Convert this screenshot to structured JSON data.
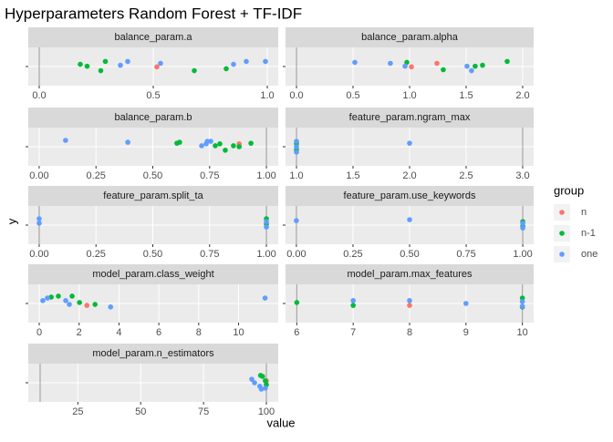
{
  "title": "Hyperparameters Random Forest + TF-IDF",
  "xlabel": "value",
  "ylabel": "y",
  "legend_title": "group",
  "chart_data": [
    {
      "type": "scatter",
      "title": "balance_param.a",
      "xlim": [
        -0.048,
        1.048
      ],
      "ylim": [
        0.4,
        1.6
      ],
      "xticks": [
        {
          "value": 0,
          "label": "0.0"
        },
        {
          "value": 0.5,
          "label": "0.5"
        },
        {
          "value": 1,
          "label": "1.0"
        }
      ],
      "vlines": [
        0
      ],
      "series": [
        {
          "name": "n",
          "color": "#F8766D",
          "x": [
            0.516
          ],
          "values": [
            0.99
          ]
        },
        {
          "name": "n-1",
          "color": "#00BA38",
          "x": [
            0.18,
            0.21,
            0.27,
            0.29,
            0.68,
            0.82
          ],
          "values": [
            1.07,
            1.01,
            0.87,
            1.16,
            0.87,
            0.93
          ]
        },
        {
          "name": "one",
          "color": "#619CFF",
          "x": [
            0.356,
            0.388,
            0.532,
            0.852,
            0.908,
            0.992
          ],
          "values": [
            1.04,
            1.16,
            1.1,
            1.07,
            1.16,
            1.16
          ]
        }
      ]
    },
    {
      "type": "scatter",
      "title": "balance_param.alpha",
      "xlim": [
        -0.097,
        2.097
      ],
      "ylim": [
        0.4,
        1.6
      ],
      "xticks": [
        {
          "value": 0,
          "label": "0.0"
        },
        {
          "value": 0.5,
          "label": "0.5"
        },
        {
          "value": 1,
          "label": "1.0"
        },
        {
          "value": 1.5,
          "label": "1.5"
        },
        {
          "value": 2,
          "label": "2.0"
        }
      ],
      "vlines": [
        0
      ],
      "series": [
        {
          "name": "n",
          "color": "#F8766D",
          "x": [
            1.016,
            1.242
          ],
          "values": [
            0.99,
            1.1
          ]
        },
        {
          "name": "n-1",
          "color": "#00BA38",
          "x": [
            0.976,
            1.298,
            1.58,
            1.645,
            1.863
          ],
          "values": [
            1.13,
            0.9,
            1.01,
            1.04,
            1.16
          ]
        },
        {
          "name": "one",
          "color": "#619CFF",
          "x": [
            0.516,
            0.83,
            0.96,
            1.508,
            1.548
          ],
          "values": [
            1.13,
            1.1,
            1.01,
            1.01,
            0.87
          ]
        }
      ]
    },
    {
      "type": "scatter",
      "title": "balance_param.b",
      "xlim": [
        -0.048,
        1.052
      ],
      "ylim": [
        0.4,
        1.6
      ],
      "xticks": [
        {
          "value": 0,
          "label": "0.00"
        },
        0.25,
        {
          "value": 0.5,
          "label": "0.50"
        },
        0.75,
        {
          "value": 1,
          "label": "1.00"
        }
      ],
      "vlines": [
        1
      ],
      "series": [
        {
          "name": "n",
          "color": "#F8766D",
          "x": [
            0.88
          ],
          "values": [
            1.09
          ]
        },
        {
          "name": "n-1",
          "color": "#00BA38",
          "x": [
            0.606,
            0.618,
            0.775,
            0.795,
            0.819,
            0.855,
            0.88,
            0.932
          ],
          "values": [
            1.11,
            1.14,
            1.03,
            1.09,
            0.89,
            1.03,
            1.0,
            1.11
          ]
        },
        {
          "name": "one",
          "color": "#619CFF",
          "x": [
            0.116,
            0.39,
            0.74,
            0.755,
            0.735,
            0.715
          ],
          "values": [
            1.2,
            1.14,
            1.17,
            1.17,
            1.09,
            1.03
          ]
        }
      ]
    },
    {
      "type": "scatter",
      "title": "feature_param.ngram_max",
      "xlim": [
        0.903,
        3.097
      ],
      "ylim": [
        0.4,
        1.6
      ],
      "xticks": [
        {
          "value": 1,
          "label": "1.0"
        },
        1.5,
        {
          "value": 2,
          "label": "2.0"
        },
        2.5,
        {
          "value": 3,
          "label": "3.0"
        }
      ],
      "vlines": [
        1,
        3
      ],
      "series": [
        {
          "name": "n-1",
          "color": "#00BA38",
          "x": [
            1,
            1
          ],
          "values": [
            1.1,
            0.9
          ]
        },
        {
          "name": "one",
          "color": "#619CFF",
          "x": [
            1,
            1,
            1,
            2
          ],
          "values": [
            1.17,
            1.0,
            0.83,
            1.11
          ]
        }
      ]
    },
    {
      "type": "scatter",
      "title": "feature_param.split_ta",
      "xlim": [
        -0.048,
        1.052
      ],
      "ylim": [
        0.4,
        1.6
      ],
      "xticks": [
        {
          "value": 0,
          "label": "0.00"
        },
        0.25,
        {
          "value": 0.5,
          "label": "0.50"
        },
        0.75,
        {
          "value": 1,
          "label": "1.00"
        }
      ],
      "vlines": [
        0,
        1
      ],
      "series": [
        {
          "name": "n-1",
          "color": "#00BA38",
          "x": [
            1,
            1
          ],
          "values": [
            1.2,
            1.03
          ]
        },
        {
          "name": "one",
          "color": "#619CFF",
          "x": [
            0,
            0,
            1,
            1
          ],
          "values": [
            1.2,
            1.06,
            1.11,
            0.94
          ]
        }
      ]
    },
    {
      "type": "scatter",
      "title": "feature_param.use_keywords",
      "xlim": [
        -0.048,
        1.048
      ],
      "ylim": [
        0.4,
        1.6
      ],
      "xticks": [
        {
          "value": 0,
          "label": "0.00"
        },
        0.25,
        {
          "value": 0.5,
          "label": "0.50"
        },
        0.75,
        {
          "value": 1,
          "label": "1.00"
        }
      ],
      "vlines": [
        0,
        1
      ],
      "series": [
        {
          "name": "n-1",
          "color": "#00BA38",
          "x": [
            1,
            1
          ],
          "values": [
            1.11,
            0.97
          ]
        },
        {
          "name": "one",
          "color": "#619CFF",
          "x": [
            0,
            0.5,
            1,
            1
          ],
          "values": [
            1.14,
            1.17,
            1.06,
            0.91
          ]
        }
      ]
    },
    {
      "type": "scatter",
      "title": "model_param.class_weight",
      "xlim": [
        -0.55,
        11.99
      ],
      "ylim": [
        0.4,
        1.6
      ],
      "xticks": [
        0,
        2,
        4,
        6,
        8,
        10
      ],
      "vlines": [],
      "series": [
        {
          "name": "n",
          "color": "#F8766D",
          "x": [
            2.39
          ],
          "values": [
            0.94
          ]
        },
        {
          "name": "n-1",
          "color": "#00BA38",
          "x": [
            0.6,
            0.96,
            1.65,
            2.02,
            2.8
          ],
          "values": [
            1.2,
            1.23,
            1.23,
            1.03,
            0.97
          ]
        },
        {
          "name": "one",
          "color": "#619CFF",
          "x": [
            0.18,
            0.41,
            1.33,
            1.51,
            3.58,
            11.33
          ],
          "values": [
            1.09,
            1.17,
            1.09,
            0.97,
            0.89,
            1.17
          ]
        }
      ]
    },
    {
      "type": "scatter",
      "title": "model_param.max_features",
      "xlim": [
        5.8,
        10.2
      ],
      "ylim": [
        0.4,
        1.6
      ],
      "xticks": [
        6,
        7,
        8,
        9,
        10
      ],
      "vlines": [
        6,
        10
      ],
      "series": [
        {
          "name": "n",
          "color": "#F8766D",
          "x": [
            8
          ],
          "values": [
            0.94
          ]
        },
        {
          "name": "n-1",
          "color": "#00BA38",
          "x": [
            6,
            7,
            10,
            10
          ],
          "values": [
            1.03,
            0.94,
            1.17,
            0.89
          ]
        },
        {
          "name": "one",
          "color": "#619CFF",
          "x": [
            7,
            8,
            9,
            10,
            10
          ],
          "values": [
            1.09,
            1.09,
            1.0,
            1.06,
            0.91
          ]
        }
      ]
    },
    {
      "type": "scatter",
      "title": "model_param.n_estimators",
      "xlim": [
        5.28,
        104.72
      ],
      "ylim": [
        0.4,
        1.6
      ],
      "xticks": [
        25,
        50,
        75,
        100
      ],
      "vlines": [
        10,
        100
      ],
      "series": [
        {
          "name": "n",
          "color": "#F8766D",
          "x": [
            100
          ],
          "values": [
            1.06
          ]
        },
        {
          "name": "n-1",
          "color": "#00BA38",
          "x": [
            97.7,
            98.5,
            99.6,
            100
          ],
          "values": [
            1.23,
            1.2,
            1.06,
            0.94
          ]
        },
        {
          "name": "one",
          "color": "#619CFF",
          "x": [
            94.2,
            95.3,
            97.4,
            98,
            99.6
          ],
          "values": [
            1.11,
            1.0,
            0.89,
            0.8,
            0.83
          ]
        }
      ]
    }
  ]
}
